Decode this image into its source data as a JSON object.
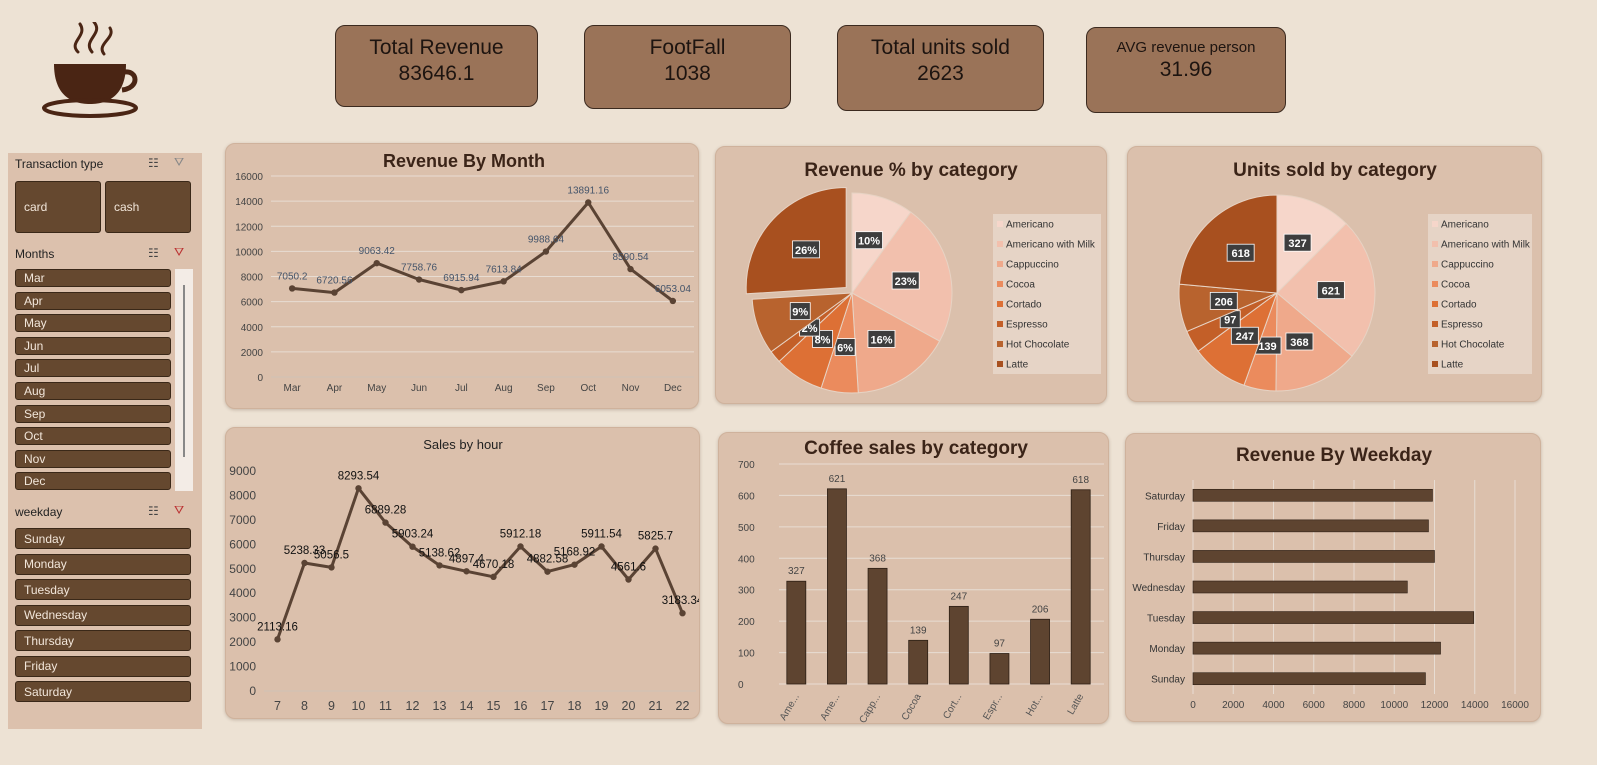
{
  "kpis": [
    {
      "title": "Total Revenue",
      "value": "83646.1"
    },
    {
      "title": "FootFall",
      "value": "1038"
    },
    {
      "title": "Total units sold",
      "value": "2623"
    },
    {
      "title": "AVG revenue person",
      "value": "31.96"
    }
  ],
  "slicers": {
    "transaction": {
      "title": "Transaction type",
      "items": [
        "card",
        "cash"
      ]
    },
    "months": {
      "title": "Months",
      "items": [
        "Mar",
        "Apr",
        "May",
        "Jun",
        "Jul",
        "Aug",
        "Sep",
        "Oct",
        "Nov",
        "Dec"
      ]
    },
    "weekday": {
      "title": "weekday",
      "items": [
        "Sunday",
        "Monday",
        "Tuesday",
        "Wednesday",
        "Thursday",
        "Friday",
        "Saturday"
      ]
    }
  },
  "colors": {
    "brown": "#5e4430",
    "line": "#5a4334",
    "panel": "#dbc0ac",
    "background": "#ede2d4"
  },
  "chart_data": [
    {
      "id": "month",
      "type": "line",
      "title": "Revenue By Month",
      "categories": [
        "Mar",
        "Apr",
        "May",
        "Jun",
        "Jul",
        "Aug",
        "Sep",
        "Oct",
        "Nov",
        "Dec"
      ],
      "values": [
        7050.2,
        6720.56,
        9063.42,
        7758.76,
        6915.94,
        7613.84,
        9988.64,
        13891.16,
        8590.54,
        6053.04
      ],
      "labels": [
        "7050.2",
        "6720.56",
        "9063.42",
        "7758.76",
        "6915.94",
        "7613.84",
        "9988.64",
        "13891.16",
        "8590.54",
        "6053.04"
      ],
      "ylim": [
        0,
        16000
      ],
      "yticks": [
        "0",
        "2000",
        "4000",
        "6000",
        "8000",
        "10000",
        "12000",
        "14000",
        "16000"
      ],
      "grid": true
    },
    {
      "id": "revpie",
      "type": "pie",
      "title": "Revenue % by category",
      "categories": [
        "Americano",
        "Americano with Milk",
        "Cappuccino",
        "Cocoa",
        "Cortado",
        "Espresso",
        "Hot Chocolate",
        "Latte"
      ],
      "values": [
        10,
        23,
        16,
        6,
        8,
        2,
        9,
        26
      ],
      "labels": [
        "10%",
        "23%",
        "16%",
        "6%",
        "8%",
        "2%",
        "9%",
        "26%"
      ],
      "legend": "right"
    },
    {
      "id": "unitpie",
      "type": "pie",
      "title": "Units sold by category",
      "categories": [
        "Americano",
        "Americano with Milk",
        "Cappuccino",
        "Cocoa",
        "Cortado",
        "Espresso",
        "Hot Chocolate",
        "Latte"
      ],
      "values": [
        327,
        621,
        368,
        139,
        247,
        97,
        206,
        618
      ],
      "labels": [
        "327",
        "621",
        "368",
        "139",
        "247",
        "97",
        "206",
        "618"
      ],
      "legend": "right"
    },
    {
      "id": "hour",
      "type": "line",
      "title": "Sales by hour",
      "categories": [
        "7",
        "8",
        "9",
        "10",
        "11",
        "12",
        "13",
        "14",
        "15",
        "16",
        "17",
        "18",
        "19",
        "20",
        "21",
        "22"
      ],
      "values": [
        2113.16,
        5238.33,
        5056.5,
        8293.54,
        6889.28,
        5903.24,
        5138.62,
        4897.4,
        4670.18,
        5912.18,
        4882.58,
        5168.92,
        5911.54,
        4561.6,
        5825.7,
        3183.34
      ],
      "labels": [
        "2113.16",
        "5238.33",
        "5056.5",
        "8293.54",
        "6889.28",
        "5903.24",
        "5138.62",
        "4897.4",
        "4670.18",
        "5912.18",
        "4882.58",
        "5168.92",
        "5911.54",
        "4561.6",
        "5825.7",
        "3183.34"
      ],
      "ylim": [
        0,
        9000
      ],
      "yticks": [
        "0",
        "1000",
        "2000",
        "3000",
        "4000",
        "5000",
        "6000",
        "7000",
        "8000",
        "9000"
      ],
      "grid": false
    },
    {
      "id": "bars",
      "type": "bar",
      "title": "Coffee sales by category",
      "categories": [
        "Ame...",
        "Ame...",
        "Capp...",
        "Cocoa",
        "Cort...",
        "Espr...",
        "Hot...",
        "Latte"
      ],
      "values": [
        327,
        621,
        368,
        139,
        247,
        97,
        206,
        618
      ],
      "labels": [
        "327",
        "621",
        "368",
        "139",
        "247",
        "97",
        "206",
        "618"
      ],
      "ylim": [
        0,
        700
      ],
      "yticks": [
        "0",
        "100",
        "200",
        "300",
        "400",
        "500",
        "600",
        "700"
      ],
      "grid": true
    },
    {
      "id": "weekday",
      "type": "bar",
      "orientation": "horizontal",
      "title": "Revenue By Weekday",
      "categories": [
        "Saturday",
        "Friday",
        "Thursday",
        "Wednesday",
        "Tuesday",
        "Monday",
        "Sunday"
      ],
      "values": [
        11900,
        11700,
        12000,
        10650,
        13950,
        12300,
        11550
      ],
      "xlim": [
        0,
        16000
      ],
      "xticks": [
        "0",
        "2000",
        "4000",
        "6000",
        "8000",
        "10000",
        "12000",
        "14000",
        "16000"
      ],
      "grid": true
    }
  ]
}
